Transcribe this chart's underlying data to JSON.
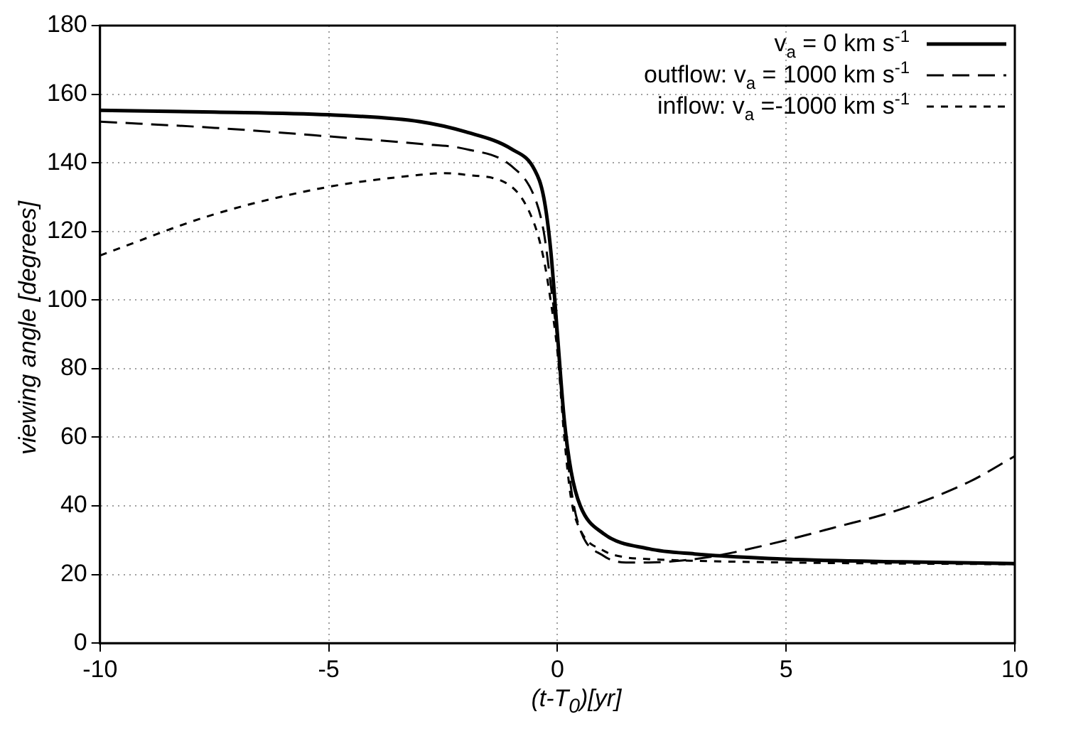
{
  "chart_data": {
    "type": "line",
    "xlabel": "(t-T$_{0}$)[yr]",
    "ylabel": "viewing angle [degrees]",
    "xlim": [
      -10,
      10
    ],
    "xticks": [
      -10,
      -5,
      0,
      5,
      10
    ],
    "ylim": [
      0,
      180
    ],
    "yticks": [
      0,
      20,
      40,
      60,
      80,
      100,
      120,
      140,
      160,
      180
    ],
    "grid": true,
    "legend": "top right",
    "marker": "none",
    "series": [
      {
        "name": "v$_{a}$ = 0    km s$^{-1}$",
        "color": "#000000",
        "line_style": "solid",
        "x": [
          -10,
          -7.5,
          -5,
          -3,
          -2,
          -1,
          -0.5,
          -0.3,
          -0.15,
          0,
          0.15,
          0.3,
          0.5,
          1,
          2,
          3,
          5,
          7.5,
          10
        ],
        "values": [
          155.3,
          154.8,
          154,
          152,
          149,
          144,
          138,
          130,
          115,
          90,
          65,
          50,
          40,
          32,
          27.5,
          26,
          24.5,
          23.7,
          23.2
        ]
      },
      {
        "name": "outflow: v$_{a}$ = 1000 km s$^{-1}$",
        "color": "#000000",
        "line_style": "dashed",
        "x": [
          -10,
          -7.5,
          -5,
          -3,
          -2,
          -1,
          -0.5,
          -0.3,
          -0.15,
          0,
          0.15,
          0.3,
          0.5,
          1,
          1.5,
          2,
          3,
          3.5,
          5,
          6,
          7.5,
          9,
          10
        ],
        "values": [
          152,
          150.2,
          147.7,
          145.5,
          144,
          139,
          130,
          120,
          105,
          88,
          65,
          45,
          33,
          25.5,
          23.5,
          23.5,
          24.5,
          25.5,
          30,
          33.5,
          39,
          47,
          54.5
        ]
      },
      {
        "name": "inflow:  v$_{a}$ =-1000 km s$^{-1}$",
        "color": "#000000",
        "line_style": "dotted",
        "x": [
          -10,
          -7.5,
          -5,
          -3,
          -2.5,
          -2,
          -1,
          -0.5,
          -0.3,
          -0.15,
          0,
          0.15,
          0.3,
          0.5,
          1,
          1.5,
          2,
          3,
          5,
          7.5,
          10
        ],
        "values": [
          113,
          125,
          133,
          136.5,
          137,
          136.5,
          133,
          122,
          112,
          100,
          85,
          60,
          42,
          33,
          27,
          25,
          24.5,
          24,
          23.5,
          23.2,
          23
        ]
      }
    ]
  }
}
